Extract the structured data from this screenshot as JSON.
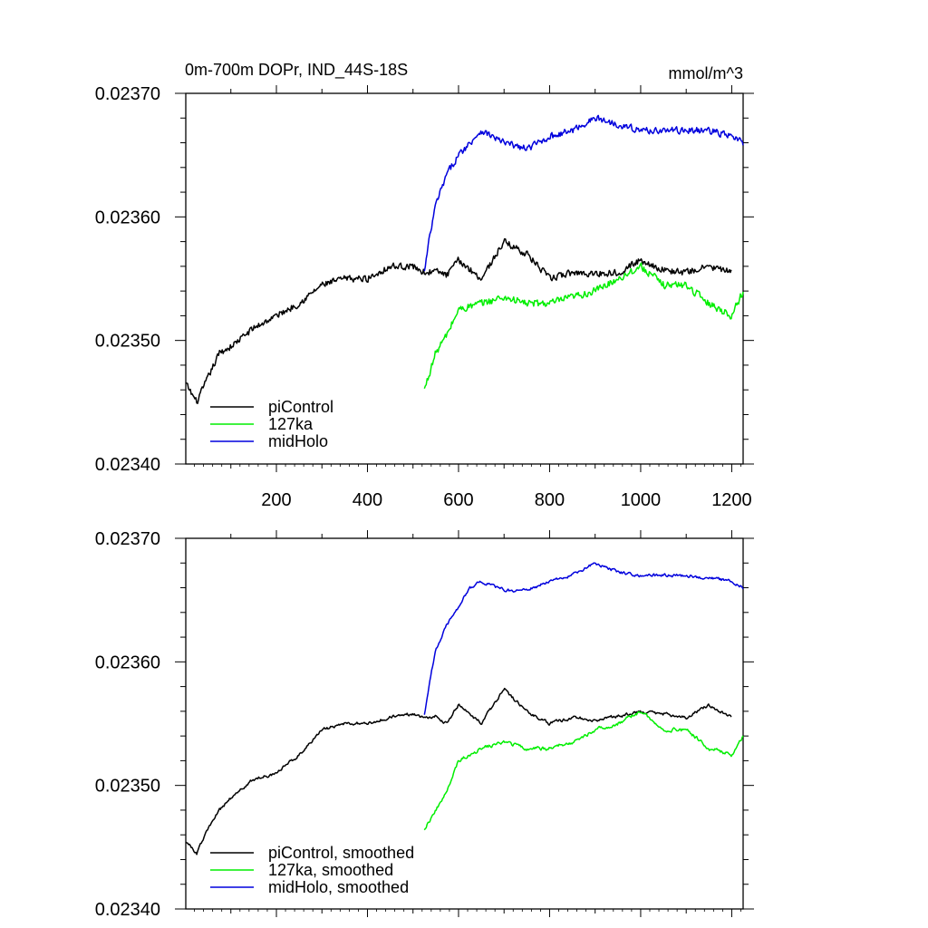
{
  "figure_title": "0m-700m DOPr, IND_44S-18S",
  "units": "mmol/m^3",
  "colors": {
    "piControl": "#000000",
    "127ka": "#00ee00",
    "midHolo": "#0000dd",
    "axis": "#000000"
  },
  "chart_data": [
    {
      "type": "line",
      "title": "0m-700m DOPr, IND_44S-18S",
      "units_label": "mmol/m^3",
      "xlabel": "",
      "ylabel": "",
      "xlim": [
        1,
        1225
      ],
      "ylim": [
        0.0234,
        0.0237
      ],
      "xticks": [
        200,
        400,
        600,
        800,
        1000,
        1200
      ],
      "xtick_labels": [
        "200",
        "400",
        "600",
        "800",
        "1000",
        "1200"
      ],
      "yticks": [
        0.0234,
        0.0235,
        0.0236,
        0.0237
      ],
      "ytick_labels": [
        "0.02340",
        "0.02350",
        "0.02360",
        "0.02370"
      ],
      "legend_position": "bottom-left",
      "grid": false,
      "series": [
        {
          "name": "piControl",
          "label": "piControl",
          "color_key": "piControl",
          "x": [
            1,
            25,
            50,
            75,
            100,
            150,
            200,
            250,
            300,
            350,
            400,
            450,
            500,
            525,
            550,
            575,
            600,
            650,
            700,
            750,
            800,
            850,
            900,
            950,
            1000,
            1050,
            1100,
            1150,
            1200
          ],
          "y": [
            0.023465,
            0.02345,
            0.02347,
            0.02349,
            0.023495,
            0.02351,
            0.02352,
            0.02353,
            0.023545,
            0.02355,
            0.02355,
            0.02356,
            0.02356,
            0.023555,
            0.023556,
            0.023553,
            0.023565,
            0.02355,
            0.02358,
            0.02357,
            0.02355,
            0.023555,
            0.023554,
            0.023555,
            0.023565,
            0.023557,
            0.023555,
            0.02356,
            0.023555
          ],
          "noise": 2.5e-06
        },
        {
          "name": "127ka",
          "label": "127ka",
          "color_key": "127ka",
          "x": [
            525,
            550,
            575,
            600,
            650,
            700,
            750,
            800,
            850,
            900,
            950,
            1000,
            1050,
            1100,
            1150,
            1200,
            1225
          ],
          "y": [
            0.02346,
            0.02349,
            0.023505,
            0.023525,
            0.02353,
            0.023535,
            0.02353,
            0.02353,
            0.023535,
            0.02354,
            0.02355,
            0.02356,
            0.023545,
            0.023545,
            0.02353,
            0.02352,
            0.02354
          ],
          "noise": 2.8e-06
        },
        {
          "name": "midHolo",
          "label": "midHolo",
          "color_key": "midHolo",
          "x": [
            525,
            535,
            550,
            575,
            600,
            625,
            650,
            700,
            750,
            800,
            850,
            900,
            950,
            1000,
            1050,
            1100,
            1150,
            1200,
            1225
          ],
          "y": [
            0.023555,
            0.02358,
            0.02361,
            0.023635,
            0.02365,
            0.02366,
            0.02367,
            0.02366,
            0.023655,
            0.023665,
            0.02367,
            0.02368,
            0.023675,
            0.02367,
            0.02367,
            0.02367,
            0.02367,
            0.023665,
            0.02366
          ],
          "noise": 2.5e-06
        }
      ]
    },
    {
      "type": "line",
      "title": "",
      "xlabel": "",
      "ylabel": "",
      "xlim": [
        1,
        1225
      ],
      "ylim": [
        0.0234,
        0.0237
      ],
      "xticks": [
        200,
        400,
        600,
        800,
        1000,
        1200
      ],
      "xtick_labels": [],
      "yticks": [
        0.0234,
        0.0235,
        0.0236,
        0.0237
      ],
      "ytick_labels": [
        "0.02340",
        "0.02350",
        "0.02360",
        "0.02370"
      ],
      "legend_position": "bottom-left",
      "grid": false,
      "series": [
        {
          "name": "piControl, smoothed",
          "label": "piControl, smoothed",
          "color_key": "piControl",
          "x": [
            1,
            25,
            50,
            75,
            100,
            150,
            200,
            250,
            300,
            350,
            400,
            450,
            500,
            525,
            550,
            575,
            600,
            650,
            700,
            750,
            800,
            850,
            900,
            950,
            1000,
            1050,
            1100,
            1150,
            1200
          ],
          "y": [
            0.023455,
            0.023445,
            0.023465,
            0.02348,
            0.02349,
            0.023505,
            0.02351,
            0.023525,
            0.023545,
            0.02355,
            0.02355,
            0.023555,
            0.023558,
            0.023555,
            0.023556,
            0.02355,
            0.023565,
            0.02355,
            0.023578,
            0.02356,
            0.02355,
            0.023555,
            0.023553,
            0.023556,
            0.02356,
            0.023558,
            0.023555,
            0.023565,
            0.023555
          ],
          "noise": 1.2e-06
        },
        {
          "name": "127ka, smoothed",
          "label": "127ka, smoothed",
          "color_key": "127ka",
          "x": [
            525,
            550,
            575,
            600,
            650,
            700,
            750,
            800,
            850,
            900,
            950,
            1000,
            1050,
            1100,
            1150,
            1200,
            1225
          ],
          "y": [
            0.023465,
            0.02348,
            0.023495,
            0.02352,
            0.02353,
            0.023535,
            0.02353,
            0.02353,
            0.023535,
            0.023545,
            0.02355,
            0.02356,
            0.023545,
            0.023545,
            0.02353,
            0.023525,
            0.02354
          ],
          "noise": 1.4e-06
        },
        {
          "name": "midHolo, smoothed",
          "label": "midHolo, smoothed",
          "color_key": "midHolo",
          "x": [
            525,
            535,
            550,
            575,
            600,
            625,
            650,
            700,
            750,
            800,
            850,
            900,
            950,
            1000,
            1050,
            1100,
            1150,
            1200,
            1225
          ],
          "y": [
            0.023558,
            0.02358,
            0.02361,
            0.02363,
            0.023645,
            0.02366,
            0.023665,
            0.023658,
            0.023658,
            0.023665,
            0.02367,
            0.02368,
            0.023673,
            0.02367,
            0.02367,
            0.02367,
            0.023668,
            0.023665,
            0.02366
          ],
          "noise": 1.2e-06
        }
      ]
    }
  ]
}
